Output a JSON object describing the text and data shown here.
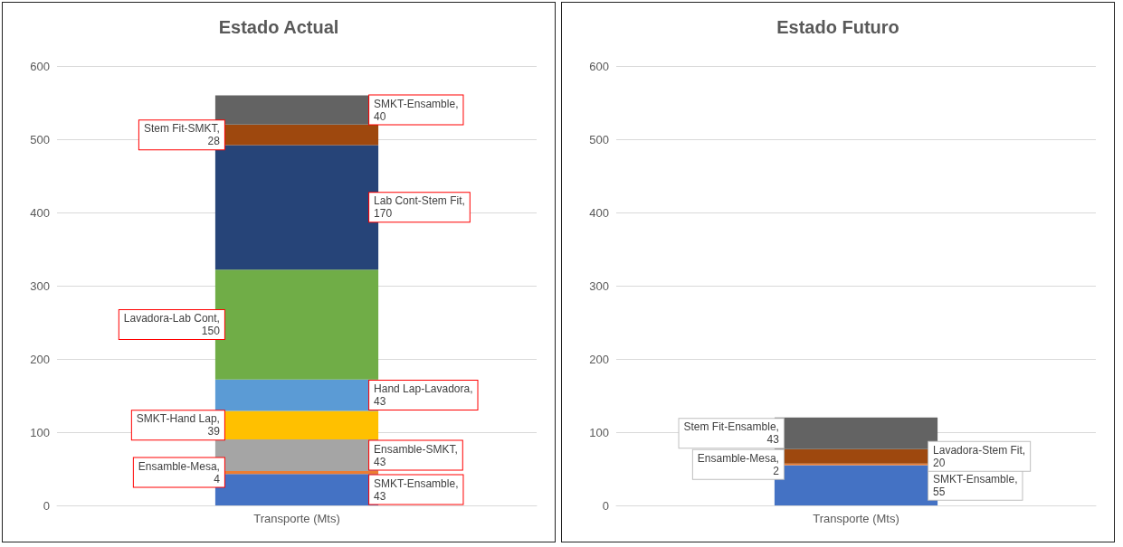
{
  "chart_data": [
    {
      "type": "bar",
      "title": "Estado Actual",
      "categories": [
        "Transporte (Mts)"
      ],
      "stacked": true,
      "data_labels": true,
      "grid": "y",
      "ylim": [
        0,
        600
      ],
      "yticks": [
        0,
        100,
        200,
        300,
        400,
        500,
        600
      ],
      "series": [
        {
          "name": "SMKT-Ensamble,",
          "color": "#4472c4",
          "values": [
            43
          ]
        },
        {
          "name": "Ensamble-Mesa,",
          "color": "#ed7d31",
          "values": [
            4
          ]
        },
        {
          "name": "Ensamble-SMKT,",
          "color": "#a5a5a5",
          "values": [
            43
          ]
        },
        {
          "name": "SMKT-Hand Lap,",
          "color": "#ffc000",
          "values": [
            39
          ]
        },
        {
          "name": "Hand Lap-Lavadora,",
          "color": "#5b9bd5",
          "values": [
            43
          ]
        },
        {
          "name": "Lavadora-Lab Cont,",
          "color": "#70ad47",
          "values": [
            150
          ]
        },
        {
          "name": "Lab Cont-Stem Fit,",
          "color": "#264478",
          "values": [
            170
          ]
        },
        {
          "name": "Stem Fit-SMKT,",
          "color": "#9e480e",
          "values": [
            28
          ]
        },
        {
          "name": "SMKT-Ensamble,",
          "color": "#636363",
          "values": [
            40
          ]
        }
      ]
    },
    {
      "type": "bar",
      "title": "Estado Futuro",
      "categories": [
        "Transporte (Mts)"
      ],
      "stacked": true,
      "data_labels": true,
      "grid": "y",
      "ylim": [
        0,
        600
      ],
      "yticks": [
        0,
        100,
        200,
        300,
        400,
        500,
        600
      ],
      "series": [
        {
          "name": "SMKT-Ensamble,",
          "color": "#4472c4",
          "values": [
            55
          ]
        },
        {
          "name": "Ensamble-Mesa,",
          "color": "#ed7d31",
          "values": [
            2
          ]
        },
        {
          "name": "Lavadora-Stem Fit,",
          "color": "#9e480e",
          "values": [
            20
          ]
        },
        {
          "name": "Stem Fit-Ensamble,",
          "color": "#636363",
          "values": [
            43
          ]
        }
      ]
    }
  ]
}
